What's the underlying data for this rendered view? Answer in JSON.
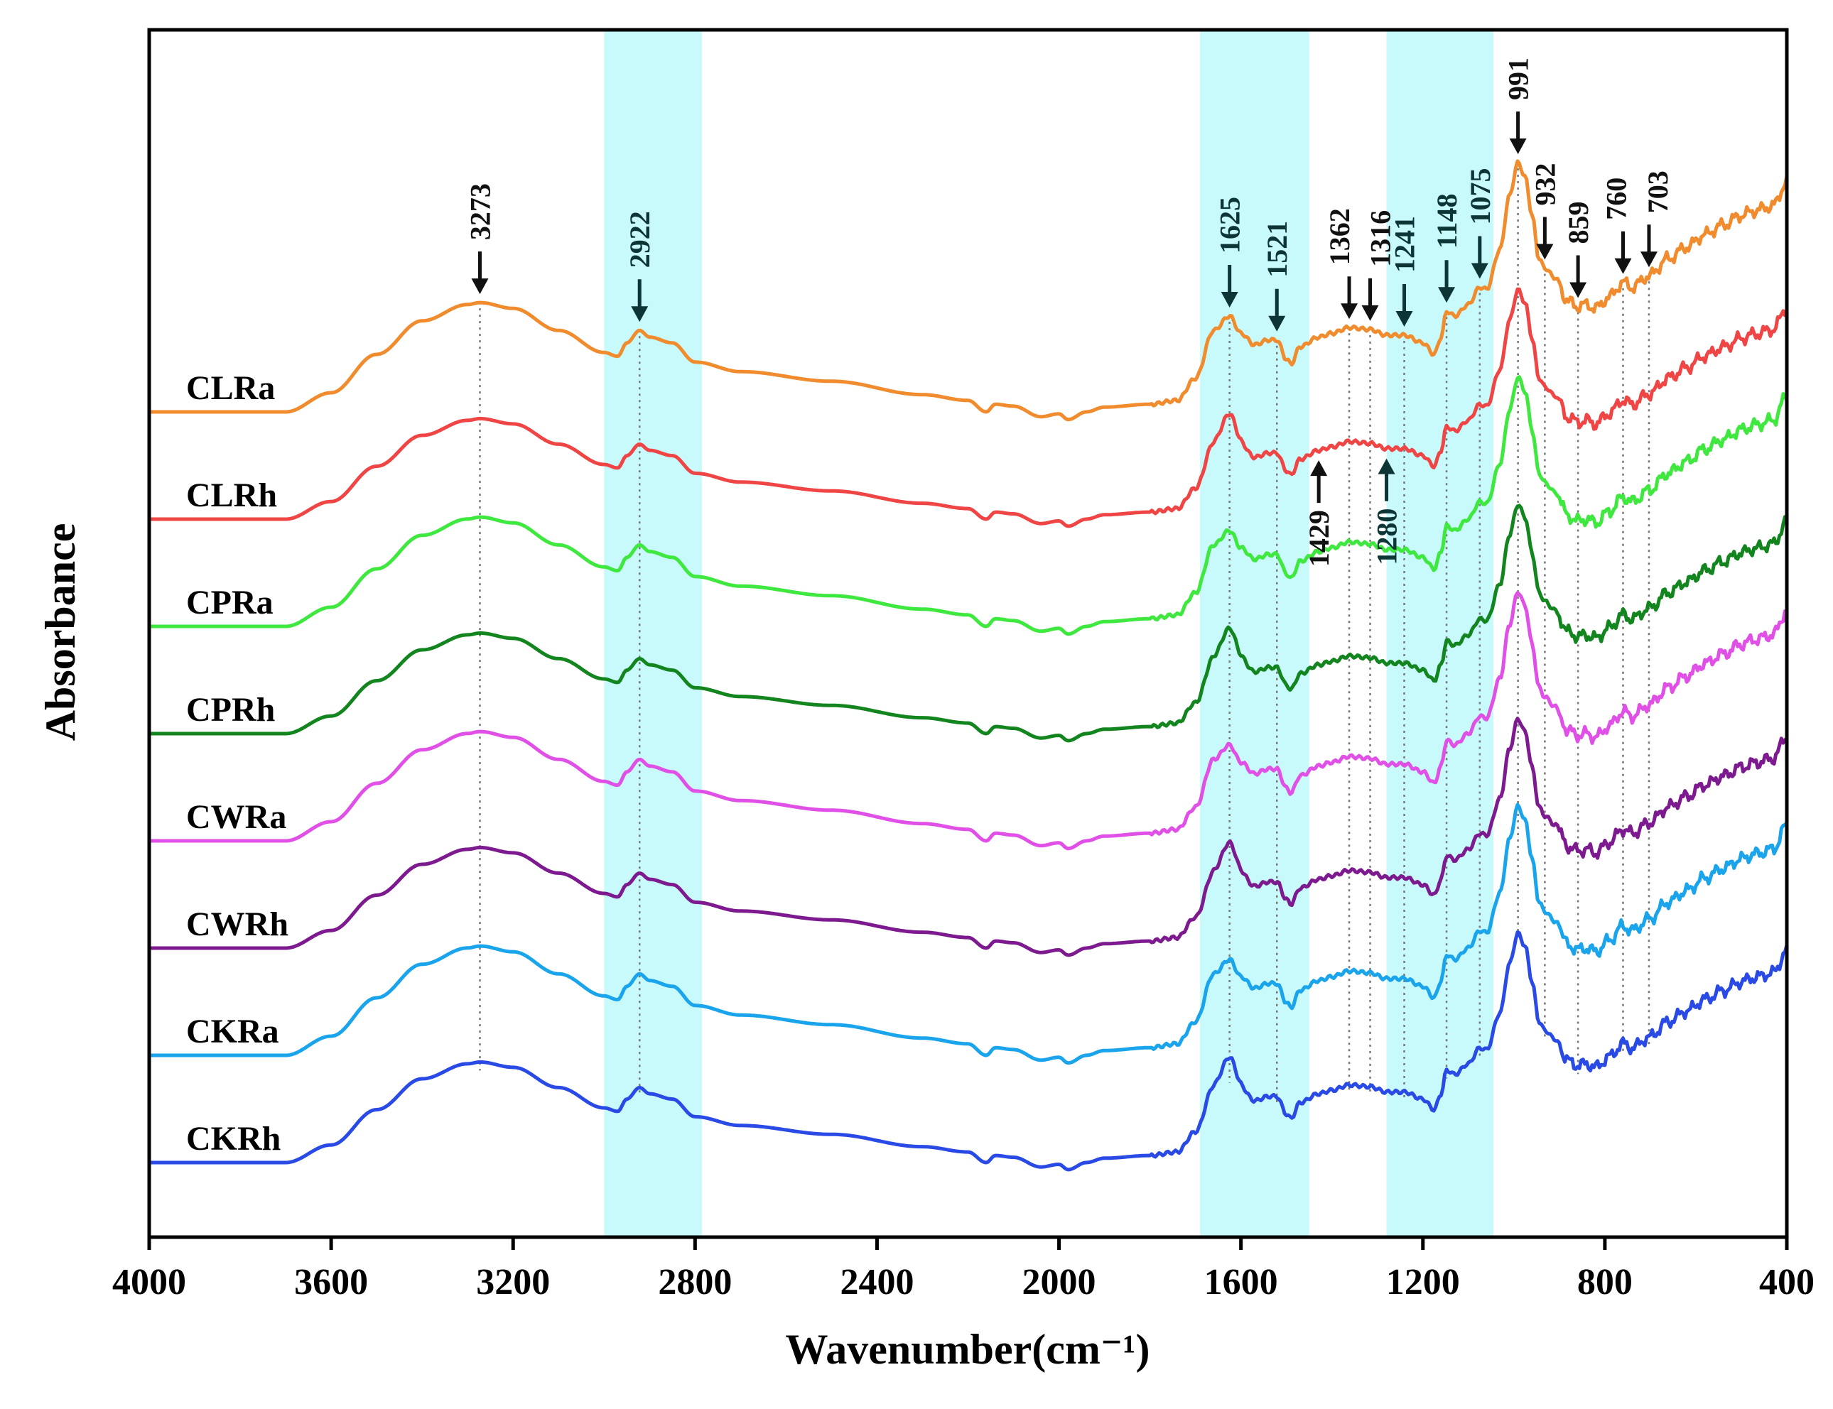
{
  "chart_data": {
    "type": "line",
    "title": "",
    "xlabel": "Wavenumber(cm⁻¹)",
    "ylabel": "Absorbance",
    "xlim": [
      4000,
      400
    ],
    "x_reversed": true,
    "x_ticks": [
      4000,
      3600,
      3200,
      2800,
      2400,
      2000,
      1600,
      1200,
      800,
      400
    ],
    "x_tick_labels": [
      "4000",
      "3600",
      "3200",
      "2800",
      "2400",
      "2000",
      "1600",
      "1200",
      "800",
      "400"
    ],
    "grid": false,
    "y_ticks_shown": false,
    "highlight_bands": [
      {
        "from": 3000,
        "to": 2785,
        "color": "#c8fafc"
      },
      {
        "from": 1690,
        "to": 1450,
        "color": "#c8fafc"
      },
      {
        "from": 1280,
        "to": 1045,
        "color": "#c8fafc"
      }
    ],
    "peak_markers": [
      {
        "wavenumber": 3273,
        "label": "3273",
        "color": "#111111"
      },
      {
        "wavenumber": 2922,
        "label": "2922",
        "color": "#0e3535"
      },
      {
        "wavenumber": 1625,
        "label": "1625",
        "color": "#0e3535"
      },
      {
        "wavenumber": 1521,
        "label": "1521",
        "color": "#0e3535"
      },
      {
        "wavenumber": 1362,
        "label": "1362",
        "color": "#111111"
      },
      {
        "wavenumber": 1316,
        "label": "1316",
        "color": "#111111"
      },
      {
        "wavenumber": 1241,
        "label": "1241",
        "color": "#0e3535"
      },
      {
        "wavenumber": 1148,
        "label": "1148",
        "color": "#0e3535"
      },
      {
        "wavenumber": 1075,
        "label": "1075",
        "color": "#0e3535"
      },
      {
        "wavenumber": 991,
        "label": "991",
        "color": "#111111"
      },
      {
        "wavenumber": 932,
        "label": "932",
        "color": "#111111"
      },
      {
        "wavenumber": 859,
        "label": "859",
        "color": "#111111"
      },
      {
        "wavenumber": 760,
        "label": "760",
        "color": "#111111"
      },
      {
        "wavenumber": 703,
        "label": "703",
        "color": "#111111"
      }
    ],
    "extra_markers": [
      {
        "wavenumber": 1429,
        "label": "1429",
        "color": "#111111"
      },
      {
        "wavenumber": 1280,
        "label": "1280",
        "color": "#0e3535"
      }
    ],
    "spectrum_points": [
      [
        4000,
        0.0
      ],
      [
        3700,
        0.0
      ],
      [
        3600,
        0.2
      ],
      [
        3500,
        0.6
      ],
      [
        3400,
        0.95
      ],
      [
        3300,
        1.12
      ],
      [
        3273,
        1.14
      ],
      [
        3200,
        1.08
      ],
      [
        3100,
        0.85
      ],
      [
        3000,
        0.62
      ],
      [
        2970,
        0.58
      ],
      [
        2950,
        0.72
      ],
      [
        2922,
        0.85
      ],
      [
        2900,
        0.78
      ],
      [
        2850,
        0.72
      ],
      [
        2800,
        0.52
      ],
      [
        2700,
        0.42
      ],
      [
        2500,
        0.32
      ],
      [
        2300,
        0.18
      ],
      [
        2200,
        0.12
      ],
      [
        2160,
        0.0
      ],
      [
        2140,
        0.08
      ],
      [
        2100,
        0.06
      ],
      [
        2040,
        -0.05
      ],
      [
        2000,
        -0.02
      ],
      [
        1980,
        -0.08
      ],
      [
        1940,
        0.0
      ],
      [
        1900,
        0.05
      ],
      [
        1800,
        0.08
      ],
      [
        1740,
        0.12
      ],
      [
        1700,
        0.35
      ],
      [
        1660,
        0.85
      ],
      [
        1625,
        1.0
      ],
      [
        1600,
        0.82
      ],
      [
        1570,
        0.7
      ],
      [
        1540,
        0.75
      ],
      [
        1521,
        0.75
      ],
      [
        1500,
        0.55
      ],
      [
        1490,
        0.5
      ],
      [
        1470,
        0.68
      ],
      [
        1429,
        0.78
      ],
      [
        1400,
        0.82
      ],
      [
        1362,
        0.88
      ],
      [
        1316,
        0.86
      ],
      [
        1280,
        0.8
      ],
      [
        1241,
        0.8
      ],
      [
        1200,
        0.72
      ],
      [
        1175,
        0.6
      ],
      [
        1160,
        0.78
      ],
      [
        1148,
        1.05
      ],
      [
        1130,
        1.0
      ],
      [
        1100,
        1.12
      ],
      [
        1075,
        1.3
      ],
      [
        1060,
        1.28
      ],
      [
        1030,
        1.7
      ],
      [
        1010,
        2.25
      ],
      [
        991,
        2.6
      ],
      [
        975,
        2.45
      ],
      [
        960,
        2.05
      ],
      [
        945,
        1.6
      ],
      [
        932,
        1.5
      ],
      [
        910,
        1.4
      ],
      [
        880,
        1.15
      ],
      [
        859,
        1.1
      ],
      [
        840,
        1.12
      ],
      [
        820,
        1.08
      ],
      [
        790,
        1.2
      ],
      [
        760,
        1.35
      ],
      [
        740,
        1.3
      ],
      [
        703,
        1.42
      ],
      [
        660,
        1.6
      ],
      [
        620,
        1.72
      ],
      [
        580,
        1.85
      ],
      [
        540,
        1.95
      ],
      [
        500,
        2.05
      ],
      [
        470,
        2.1
      ],
      [
        430,
        2.15
      ],
      [
        400,
        2.4
      ]
    ],
    "series": [
      {
        "name": "CLRa",
        "label": "CLRa",
        "color": "#f08c2e"
      },
      {
        "name": "CLRh",
        "label": "CLRh",
        "color": "#ef4545"
      },
      {
        "name": "CPRa",
        "label": "CPRa",
        "color": "#3fe83f"
      },
      {
        "name": "CPRh",
        "label": "CPRh",
        "color": "#13851f"
      },
      {
        "name": "CWRa",
        "label": "CWRa",
        "color": "#e04fe6"
      },
      {
        "name": "CWRh",
        "label": "CWRh",
        "color": "#7d1a8f"
      },
      {
        "name": "CKRa",
        "label": "CKRa",
        "color": "#1aa4ec"
      },
      {
        "name": "CKRh",
        "label": "CKRh",
        "color": "#2a4ae6"
      }
    ]
  }
}
